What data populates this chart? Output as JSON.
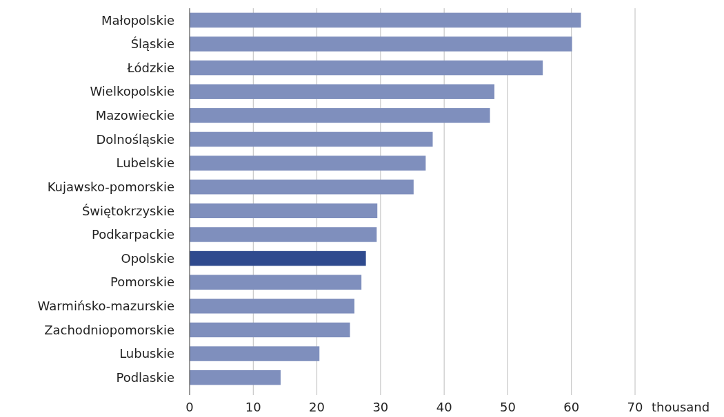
{
  "chart_data": {
    "type": "bar",
    "orientation": "horizontal",
    "xlabel": "thousand",
    "categories": [
      "Małopolskie",
      "Śląskie",
      "Łódzkie",
      "Wielkopolskie",
      "Mazowieckie",
      "Dolnośląskie",
      "Lubelskie",
      "Kujawsko-pomorskie",
      "Świętokrzyskie",
      "Podkarpackie",
      "Opolskie",
      "Pomorskie",
      "Warmińsko-mazurskie",
      "Zachodniopomorskie",
      "Lubuskie",
      "Podlaskie"
    ],
    "values": [
      61.5,
      60.1,
      55.5,
      47.9,
      47.2,
      38.2,
      37.1,
      35.2,
      29.5,
      29.4,
      27.7,
      27.0,
      25.9,
      25.2,
      20.4,
      14.3
    ],
    "colors": [
      "#7f8fbd",
      "#7f8fbd",
      "#7f8fbd",
      "#7f8fbd",
      "#7f8fbd",
      "#7f8fbd",
      "#7f8fbd",
      "#7f8fbd",
      "#7f8fbd",
      "#7f8fbd",
      "#2f4a8e",
      "#7f8fbd",
      "#7f8fbd",
      "#7f8fbd",
      "#7f8fbd",
      "#7f8fbd"
    ],
    "xlim": [
      0,
      70
    ],
    "xticks": [
      0,
      10,
      20,
      30,
      40,
      50,
      60,
      70
    ],
    "grid": "x"
  }
}
